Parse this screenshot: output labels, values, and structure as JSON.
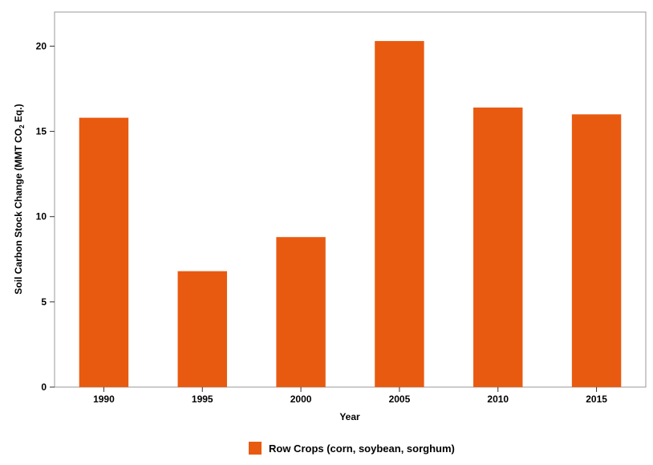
{
  "chart_data": {
    "type": "bar",
    "categories": [
      "1990",
      "1995",
      "2000",
      "2005",
      "2010",
      "2015"
    ],
    "series": [
      {
        "name": "Row Crops (corn, soybean, sorghum)",
        "values": [
          15.8,
          6.8,
          8.8,
          20.3,
          16.4,
          16.0
        ],
        "color": "#e85a10"
      }
    ],
    "xlabel": "Year",
    "ylabel_main": "Soil Carbon Stock Change  (MMT CO",
    "ylabel_sub": "2",
    "ylabel_end": " Eq.)",
    "ylim": [
      0,
      22
    ],
    "yticks": [
      0,
      5,
      10,
      15,
      20
    ],
    "grid": false,
    "legend_position": "bottom-center"
  }
}
